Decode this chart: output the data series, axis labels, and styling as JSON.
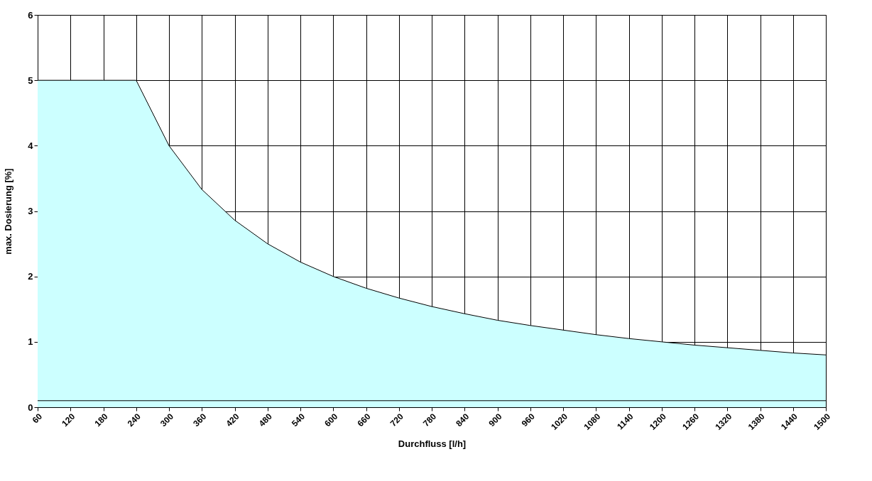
{
  "chart_data": {
    "type": "area",
    "xlabel": "Durchfluss [l/h]",
    "ylabel": "max. Dosierung [%]",
    "categories": [
      "60",
      "120",
      "180",
      "240",
      "300",
      "360",
      "420",
      "480",
      "540",
      "600",
      "660",
      "720",
      "780",
      "840",
      "900",
      "960",
      "1020",
      "1080",
      "1140",
      "1200",
      "1260",
      "1320",
      "1380",
      "1440",
      "1500"
    ],
    "series": [
      {
        "color": "#ccffff",
        "values": [
          5,
          5,
          5,
          5,
          4,
          3.33,
          2.86,
          2.5,
          2.22,
          2,
          1.82,
          1.67,
          1.54,
          1.43,
          1.33,
          1.25,
          1.18,
          1.11,
          1.05,
          1,
          0.95,
          0.91,
          0.87,
          0.83,
          0.8
        ]
      }
    ],
    "ylim": [
      0,
      6
    ],
    "yticks": [
      0,
      1,
      2,
      3,
      4,
      5,
      6
    ],
    "grid": true,
    "ref_lines": [
      {
        "axis": "y",
        "value": 0.1,
        "color": "#000000"
      }
    ]
  }
}
